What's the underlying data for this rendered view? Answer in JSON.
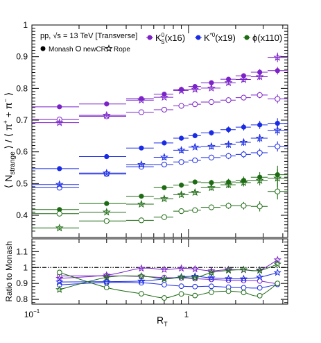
{
  "chart_data": [
    {
      "type": "scatter",
      "panel": "main",
      "xscale": "log",
      "xlim": [
        0.1,
        4.3
      ],
      "ylim": [
        0.33,
        1.0
      ],
      "ylabel": "⟨ N_strange ⟩ / ⟨ π⁺ + π⁻ ⟩",
      "ylabel_parts": {
        "open": "⟨ N",
        "sub": "strange",
        "close": " ⟩ / ⟨ π",
        "sup1": "+",
        "mid": " + π",
        "sup2": "−",
        "end": " ⟩"
      },
      "xlabel": "R_T",
      "yticks": [
        0.4,
        0.5,
        0.6,
        0.7,
        0.8,
        0.9,
        1
      ],
      "ytick_labels": [
        "0.4",
        "0.5",
        "0.6",
        "0.7",
        "0.8",
        "0.9",
        "1"
      ],
      "xtick_labels": [
        "10⁻¹",
        "1"
      ],
      "annotation": "pp, √s = 13 TeV [Transverse]",
      "legend_models": [
        "Monash",
        "newCR",
        "Rope"
      ],
      "legend_particles": [
        {
          "label": "K0S(x16)",
          "base": "K",
          "sup": "0",
          "sub": "S",
          "tail": "(x16)",
          "color": "#7b22c9"
        },
        {
          "label": "K*0(x19)",
          "base": "K",
          "sup": "*0",
          "sub": "",
          "tail": "(x19)",
          "color": "#1a2be6"
        },
        {
          "label": "ϕ(x110)",
          "base": "ϕ",
          "sup": "",
          "sub": "",
          "tail": "(x110)",
          "color": "#1d6b12"
        }
      ],
      "bins": [
        [
          0.1,
          0.2
        ],
        [
          0.2,
          0.4
        ],
        [
          0.4,
          0.6
        ],
        [
          0.6,
          0.8
        ],
        [
          0.8,
          1.0
        ],
        [
          1.0,
          1.2
        ],
        [
          1.2,
          1.6
        ],
        [
          1.6,
          2.0
        ],
        [
          2.0,
          2.5
        ],
        [
          2.5,
          3.2
        ],
        [
          3.2,
          4.3
        ]
      ],
      "series": [
        {
          "name": "K0S Monash",
          "particle": "K0S",
          "model": "Monash",
          "color": "#7b22c9",
          "light": "#b07be0",
          "x": [
            0.15,
            0.3,
            0.5,
            0.7,
            0.9,
            1.1,
            1.4,
            1.8,
            2.25,
            2.85,
            3.7
          ],
          "y": [
            0.742,
            0.751,
            0.768,
            0.782,
            0.797,
            0.806,
            0.818,
            0.829,
            0.84,
            0.851,
            0.856
          ],
          "yerr": [
            0.005,
            0.005,
            0.005,
            0.006,
            0.006,
            0.006,
            0.007,
            0.007,
            0.008,
            0.01,
            0.012
          ]
        },
        {
          "name": "K0S newCR",
          "particle": "K0S",
          "model": "newCR",
          "color": "#7b22c9",
          "light": "#b07be0",
          "x": [
            0.15,
            0.3,
            0.5,
            0.7,
            0.9,
            1.1,
            1.4,
            1.8,
            2.25,
            2.85,
            3.7
          ],
          "y": [
            0.702,
            0.712,
            0.725,
            0.733,
            0.745,
            0.75,
            0.757,
            0.763,
            0.771,
            0.779,
            0.767
          ],
          "yerr": [
            0.005,
            0.005,
            0.005,
            0.006,
            0.006,
            0.006,
            0.007,
            0.007,
            0.008,
            0.01,
            0.014
          ]
        },
        {
          "name": "K0S Rope",
          "particle": "K0S",
          "model": "Rope",
          "color": "#7b22c9",
          "light": "#b07be0",
          "x": [
            0.15,
            0.3,
            0.5,
            0.7,
            0.9,
            1.1,
            1.4,
            1.8,
            2.25,
            2.85,
            3.7
          ],
          "y": [
            0.692,
            0.715,
            0.763,
            0.772,
            0.793,
            0.797,
            0.801,
            0.818,
            0.828,
            0.837,
            0.898
          ],
          "yerr": [
            0.005,
            0.005,
            0.005,
            0.006,
            0.006,
            0.006,
            0.007,
            0.007,
            0.008,
            0.01,
            0.015
          ]
        },
        {
          "name": "K*0 Monash",
          "particle": "K*0",
          "model": "Monash",
          "color": "#1a2be6",
          "light": "#8a93f0",
          "x": [
            0.15,
            0.3,
            0.5,
            0.7,
            0.9,
            1.1,
            1.4,
            1.8,
            2.25,
            2.85,
            3.7
          ],
          "y": [
            0.547,
            0.585,
            0.612,
            0.628,
            0.643,
            0.651,
            0.66,
            0.67,
            0.678,
            0.685,
            0.69
          ],
          "yerr": [
            0.006,
            0.007,
            0.007,
            0.008,
            0.008,
            0.008,
            0.009,
            0.01,
            0.011,
            0.013,
            0.016
          ]
        },
        {
          "name": "K*0 newCR",
          "particle": "K*0",
          "model": "newCR",
          "color": "#1a2be6",
          "light": "#8a93f0",
          "x": [
            0.15,
            0.3,
            0.5,
            0.7,
            0.9,
            1.1,
            1.4,
            1.8,
            2.25,
            2.85,
            3.7
          ],
          "y": [
            0.487,
            0.53,
            0.553,
            0.56,
            0.568,
            0.573,
            0.582,
            0.587,
            0.592,
            0.597,
            0.617
          ],
          "yerr": [
            0.006,
            0.007,
            0.007,
            0.008,
            0.008,
            0.008,
            0.009,
            0.01,
            0.011,
            0.013,
            0.016
          ]
        },
        {
          "name": "K*0 Rope",
          "particle": "K*0",
          "model": "Rope",
          "color": "#1a2be6",
          "light": "#8a93f0",
          "x": [
            0.15,
            0.3,
            0.5,
            0.7,
            0.9,
            1.1,
            1.4,
            1.8,
            2.25,
            2.85,
            3.7
          ],
          "y": [
            0.497,
            0.533,
            0.56,
            0.583,
            0.605,
            0.615,
            0.617,
            0.623,
            0.63,
            0.643,
            0.668
          ],
          "yerr": [
            0.006,
            0.007,
            0.007,
            0.008,
            0.008,
            0.008,
            0.009,
            0.01,
            0.011,
            0.013,
            0.016
          ]
        },
        {
          "name": "phi Monash",
          "particle": "phi",
          "model": "Monash",
          "color": "#1d6b12",
          "light": "#8fbf86",
          "x": [
            0.15,
            0.3,
            0.5,
            0.7,
            0.9,
            1.1,
            1.4,
            1.8,
            2.25,
            2.85,
            3.7
          ],
          "y": [
            0.418,
            0.437,
            0.46,
            0.487,
            0.495,
            0.505,
            0.503,
            0.505,
            0.51,
            0.52,
            0.528
          ],
          "yerr": [
            0.004,
            0.006,
            0.006,
            0.007,
            0.008,
            0.008,
            0.009,
            0.01,
            0.012,
            0.016,
            0.028
          ]
        },
        {
          "name": "phi newCR",
          "particle": "phi",
          "model": "newCR",
          "color": "#1d6b12",
          "light": "#8fbf86",
          "x": [
            0.15,
            0.3,
            0.5,
            0.7,
            0.9,
            1.1,
            1.4,
            1.8,
            2.25,
            2.85,
            3.7
          ],
          "y": [
            0.405,
            0.382,
            0.384,
            0.394,
            0.413,
            0.416,
            0.425,
            0.43,
            0.43,
            0.428,
            0.475
          ],
          "yerr": [
            0.004,
            0.006,
            0.006,
            0.007,
            0.008,
            0.008,
            0.009,
            0.01,
            0.012,
            0.016,
            0.025
          ]
        },
        {
          "name": "phi Rope",
          "particle": "phi",
          "model": "Rope",
          "color": "#1d6b12",
          "light": "#8fbf86",
          "x": [
            0.15,
            0.3,
            0.5,
            0.7,
            0.9,
            1.1,
            1.4,
            1.8,
            2.25,
            2.85,
            3.7
          ],
          "y": [
            0.36,
            0.41,
            0.435,
            0.452,
            0.465,
            0.472,
            0.487,
            0.496,
            0.503,
            0.51,
            0.517
          ],
          "yerr": [
            0.004,
            0.006,
            0.006,
            0.007,
            0.008,
            0.008,
            0.009,
            0.01,
            0.012,
            0.016,
            0.028
          ]
        }
      ]
    },
    {
      "type": "line",
      "panel": "ratio",
      "xscale": "log",
      "xlim": [
        0.1,
        4.3
      ],
      "ylim": [
        0.77,
        1.18
      ],
      "ylabel": "Ratio to Monash",
      "xlabel": "R_T",
      "yticks": [
        0.8,
        0.9,
        1.0,
        1.1
      ],
      "ytick_labels": [
        "0.8",
        "0.9",
        "1",
        "1.1"
      ],
      "reference_line": 1.0,
      "x": [
        0.15,
        0.3,
        0.5,
        0.7,
        0.9,
        1.1,
        1.4,
        1.8,
        2.25,
        2.85,
        3.7
      ],
      "series": [
        {
          "name": "K0S newCR/Monash",
          "model": "newCR",
          "color": "#7b22c9",
          "y": [
            0.947,
            0.948,
            0.944,
            0.937,
            0.935,
            0.93,
            0.925,
            0.92,
            0.918,
            0.915,
            0.897
          ]
        },
        {
          "name": "K0S Rope/Monash",
          "model": "Rope",
          "color": "#7b22c9",
          "y": [
            0.932,
            0.952,
            0.995,
            0.987,
            0.995,
            0.99,
            0.979,
            0.987,
            0.985,
            0.984,
            1.048
          ]
        },
        {
          "name": "K*0 newCR/Monash",
          "model": "newCR",
          "color": "#1a2be6",
          "y": [
            0.891,
            0.906,
            0.904,
            0.892,
            0.883,
            0.88,
            0.882,
            0.876,
            0.873,
            0.872,
            0.894
          ]
        },
        {
          "name": "K*0 Rope/Monash",
          "model": "Rope",
          "color": "#1a2be6",
          "y": [
            0.909,
            0.911,
            0.915,
            0.928,
            0.941,
            0.945,
            0.935,
            0.93,
            0.929,
            0.939,
            0.968
          ]
        },
        {
          "name": "phi newCR/Monash",
          "model": "newCR",
          "color": "#1d6b12",
          "y": [
            0.969,
            0.874,
            0.835,
            0.809,
            0.834,
            0.824,
            0.845,
            0.851,
            0.843,
            0.823,
            0.9
          ]
        },
        {
          "name": "phi Rope/Monash",
          "model": "Rope",
          "color": "#1d6b12",
          "y": [
            0.861,
            0.938,
            0.946,
            0.928,
            0.939,
            0.935,
            0.968,
            0.982,
            0.986,
            0.981,
            1.021
          ]
        }
      ]
    }
  ]
}
